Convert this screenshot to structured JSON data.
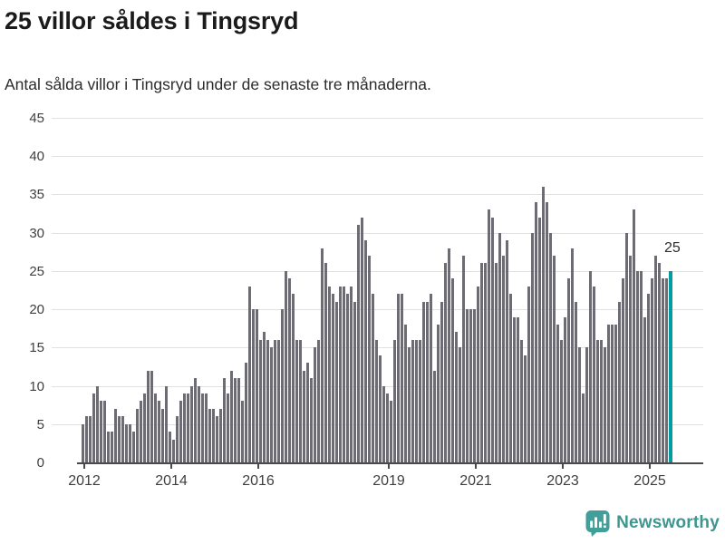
{
  "header": {
    "title": "25 villor såldes i Tingsryd",
    "subtitle": "Antal sålda villor i Tingsryd under de senaste tre månaderna."
  },
  "annotation": {
    "label": "25"
  },
  "branding": {
    "name": "Newsworthy"
  },
  "colors": {
    "bar": "#6c6c72",
    "bar_highlight": "#009ca2",
    "gridline": "#e1e1e1",
    "axis": "#4a4a4a",
    "tick_text": "#3f3f3f",
    "title_text": "#1b1b1b",
    "brand_teal": "#3d968f"
  },
  "chart_data": {
    "type": "bar",
    "title": "25 villor såldes i Tingsryd",
    "subtitle": "Antal sålda villor i Tingsryd under de senaste tre månaderna.",
    "xlabel": "",
    "ylabel": "",
    "x_unit": "month",
    "start_month": "2012-01",
    "end_month": "2025-07",
    "ylim": [
      0,
      45
    ],
    "y_ticks": [
      0,
      5,
      10,
      15,
      20,
      25,
      30,
      35,
      40,
      45
    ],
    "x_tick_years": [
      2012,
      2014,
      2016,
      2019,
      2021,
      2023,
      2025
    ],
    "grid": "horizontal",
    "legend": "none",
    "highlight_last_bar": true,
    "last_bar_value": 25,
    "values": [
      5,
      6,
      6,
      9,
      10,
      8,
      8,
      4,
      4,
      7,
      6,
      6,
      5,
      5,
      4,
      7,
      8,
      9,
      12,
      12,
      9,
      8,
      7,
      10,
      4,
      3,
      6,
      8,
      9,
      9,
      10,
      11,
      10,
      9,
      9,
      7,
      7,
      6,
      7,
      11,
      9,
      12,
      11,
      11,
      8,
      13,
      23,
      20,
      20,
      16,
      17,
      16,
      15,
      16,
      16,
      20,
      25,
      24,
      22,
      16,
      16,
      12,
      13,
      11,
      15,
      16,
      28,
      26,
      23,
      22,
      21,
      23,
      23,
      22,
      23,
      21,
      31,
      32,
      29,
      27,
      22,
      16,
      14,
      10,
      9,
      8,
      16,
      22,
      22,
      18,
      15,
      16,
      16,
      16,
      21,
      21,
      22,
      12,
      18,
      21,
      26,
      28,
      24,
      17,
      15,
      27,
      20,
      20,
      20,
      23,
      26,
      26,
      33,
      32,
      26,
      30,
      27,
      29,
      22,
      19,
      19,
      16,
      14,
      23,
      30,
      34,
      32,
      36,
      34,
      30,
      27,
      18,
      16,
      19,
      24,
      28,
      21,
      15,
      9,
      15,
      25,
      23,
      16,
      16,
      15,
      18,
      18,
      18,
      21,
      24,
      30,
      27,
      33,
      25,
      25,
      19,
      22,
      24,
      27,
      26,
      24,
      24,
      25
    ]
  }
}
